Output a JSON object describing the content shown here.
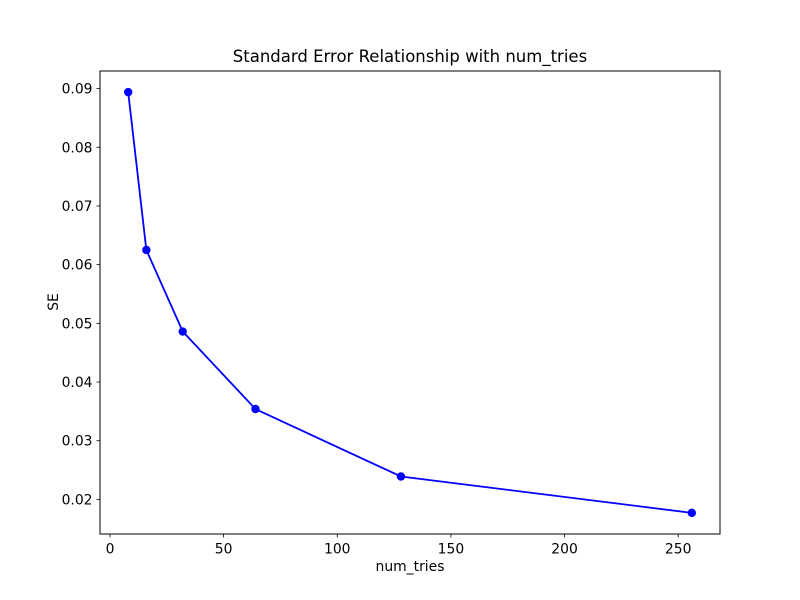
{
  "chart_data": {
    "type": "line",
    "title": "Standard Error Relationship with num_tries",
    "xlabel": "num_tries",
    "ylabel": "SE",
    "x": [
      8,
      16,
      32,
      64,
      128,
      256
    ],
    "y": [
      0.0894,
      0.0625,
      0.0486,
      0.0354,
      0.0239,
      0.0177
    ],
    "xlim": [
      -4.4,
      268.4
    ],
    "ylim": [
      0.0141,
      0.093
    ],
    "xticks": [
      0,
      50,
      100,
      150,
      200,
      250
    ],
    "xtick_labels": [
      "0",
      "50",
      "100",
      "150",
      "200",
      "250"
    ],
    "yticks": [
      0.02,
      0.03,
      0.04,
      0.05,
      0.06,
      0.07,
      0.08,
      0.09
    ],
    "ytick_labels": [
      "0.02",
      "0.03",
      "0.04",
      "0.05",
      "0.06",
      "0.07",
      "0.08",
      "0.09"
    ],
    "line_color": "#0000ff",
    "axis_color": "#000000",
    "marker": "o",
    "grid": false,
    "legend_position": "none",
    "background_color": "#ffffff"
  }
}
